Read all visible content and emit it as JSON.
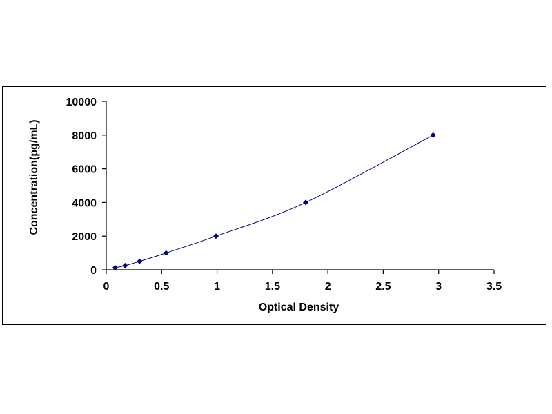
{
  "chart_data": {
    "type": "scatter",
    "xlabel": "Optical Density",
    "ylabel": "Concentration(pg/mL)",
    "xlim": [
      0,
      3.5
    ],
    "ylim": [
      0,
      10000
    ],
    "x_ticks": [
      "0",
      "0.5",
      "1",
      "1.5",
      "2",
      "2.5",
      "3",
      "3.5"
    ],
    "y_ticks": [
      "0",
      "2000",
      "4000",
      "6000",
      "8000",
      "10000"
    ],
    "grid": false,
    "legend": "none",
    "trendline": "smooth curve",
    "series": [
      {
        "x": [
          0.08,
          0.17,
          0.3,
          0.54,
          0.99,
          1.8,
          2.95
        ],
        "y": [
          125,
          250,
          500,
          1000,
          2000,
          4000,
          8000
        ],
        "marker": "diamond",
        "marker_color": "#00007f",
        "line_color": "#00007f"
      }
    ]
  }
}
